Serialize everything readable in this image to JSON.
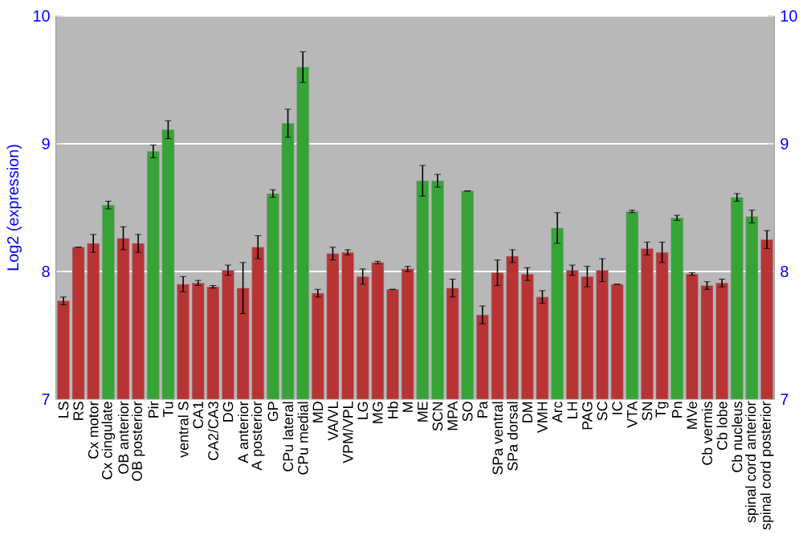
{
  "chart_data": {
    "type": "bar",
    "ylabel": "Log2 (expression)",
    "categories": [
      "LS",
      "RS",
      "Cx motor",
      "Cx cingulate",
      "OB anterior",
      "OB posterior",
      "Pir",
      "Tu",
      "ventral S",
      "CA1",
      "CA2/CA3",
      "DG",
      "A anterior",
      "A posterior",
      "GP",
      "CPu lateral",
      "CPu medial",
      "MD",
      "VA/VL",
      "VPM/VPL",
      "LG",
      "MG",
      "Hb",
      "M",
      "ME",
      "SCN",
      "MPA",
      "SO",
      "Pa",
      "SPa ventral",
      "SPa dorsal",
      "DM",
      "VMH",
      "Arc",
      "LH",
      "PAG",
      "SC",
      "IC",
      "VTA",
      "SN",
      "Tg",
      "Pn",
      "MVe",
      "Cb vermis",
      "Cb lobe",
      "Cb nucleus",
      "spinal cord anterior",
      "spinal cord posterior"
    ],
    "values": [
      7.77,
      8.19,
      8.22,
      8.52,
      8.26,
      8.22,
      8.94,
      9.11,
      7.9,
      7.91,
      7.88,
      8.01,
      7.87,
      8.19,
      8.61,
      9.16,
      9.6,
      7.83,
      8.14,
      8.15,
      7.96,
      8.07,
      7.86,
      8.02,
      8.71,
      8.71,
      7.87,
      8.63,
      7.66,
      7.99,
      8.12,
      7.98,
      7.8,
      8.34,
      8.01,
      7.96,
      8.01,
      7.9,
      8.47,
      8.18,
      8.15,
      8.42,
      7.98,
      7.89,
      7.91,
      8.58,
      8.43,
      8.25
    ],
    "errors": [
      0.03,
      0,
      0.07,
      0.03,
      0.09,
      0.07,
      0.05,
      0.07,
      0.06,
      0.02,
      0.01,
      0.04,
      0.2,
      0.09,
      0.03,
      0.11,
      0.12,
      0.03,
      0.05,
      0.02,
      0.06,
      0.01,
      0,
      0.02,
      0.12,
      0.05,
      0.07,
      0,
      0.07,
      0.1,
      0.05,
      0.05,
      0.05,
      0.12,
      0.04,
      0.08,
      0.09,
      0,
      0.01,
      0.05,
      0.08,
      0.02,
      0.01,
      0.03,
      0.03,
      0.03,
      0.05,
      0.07
    ],
    "colors": [
      "#b83434",
      "#b83434",
      "#b83434",
      "#36a336",
      "#b83434",
      "#b83434",
      "#36a336",
      "#36a336",
      "#b83434",
      "#b83434",
      "#b83434",
      "#b83434",
      "#b83434",
      "#b83434",
      "#36a336",
      "#36a336",
      "#36a336",
      "#b83434",
      "#b83434",
      "#b83434",
      "#b83434",
      "#b83434",
      "#b83434",
      "#b83434",
      "#36a336",
      "#36a336",
      "#b83434",
      "#36a336",
      "#b83434",
      "#b83434",
      "#b83434",
      "#b83434",
      "#b83434",
      "#36a336",
      "#b83434",
      "#b83434",
      "#b83434",
      "#b83434",
      "#36a336",
      "#b83434",
      "#b83434",
      "#36a336",
      "#b83434",
      "#b83434",
      "#b83434",
      "#36a336",
      "#36a336",
      "#b83434"
    ],
    "ylim": [
      7,
      10
    ],
    "yticks": [
      7,
      8,
      9,
      10
    ],
    "y2lim": [
      7,
      10
    ],
    "y2ticks": [
      7,
      8,
      9,
      10
    ],
    "grid": "y"
  }
}
